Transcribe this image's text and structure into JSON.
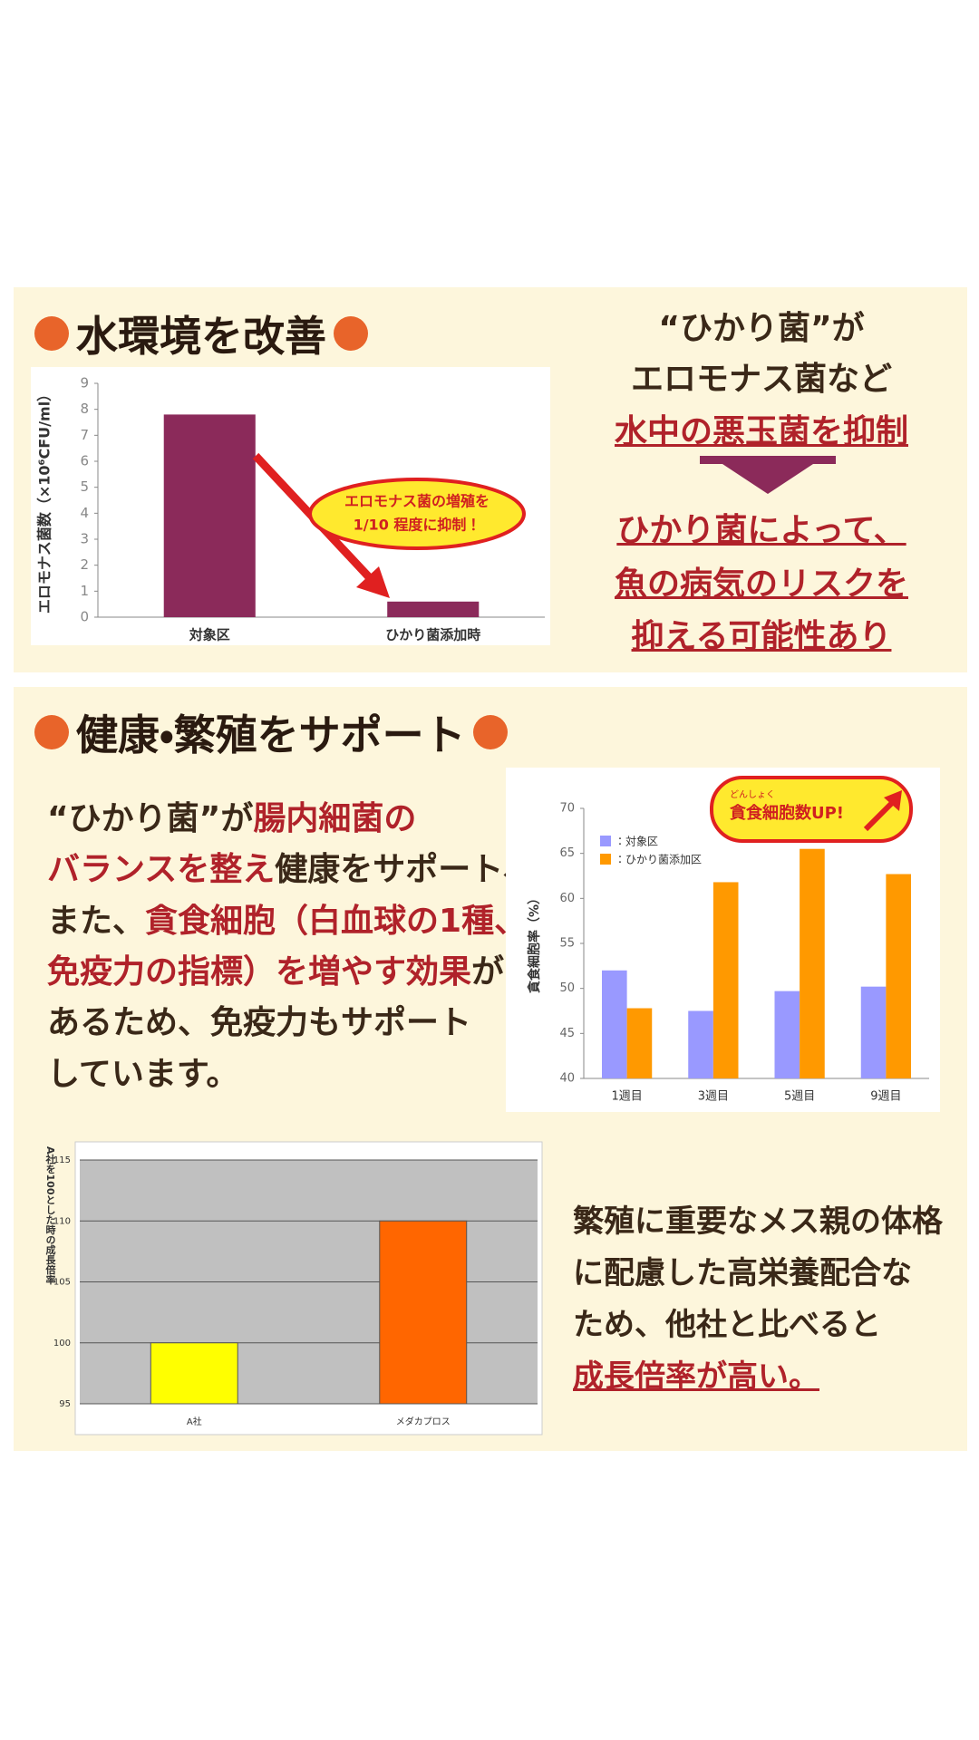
{
  "water": {
    "heading": "水環境を改善",
    "lines": [
      "“ひかり菌”が",
      "エロモナス菌など",
      "水中の悪玉菌を抑制",
      "ひかり菌によって、",
      "魚の病気のリスクを",
      "抑える可能性あり"
    ]
  },
  "health": {
    "heading": "健康・繁殖をサポート",
    "paragraph": [
      [
        "“ひかり菌”が",
        "腸内細菌の"
      ],
      [
        "バランスを整え",
        "健康をサポート、"
      ],
      [
        "また、",
        "貪食細胞（白血球の1種、"
      ],
      [
        "免疫力の指標）を増やす効果",
        "が"
      ],
      [
        "あるため、免疫力もサポート"
      ],
      [
        "しています。"
      ]
    ],
    "growth_text": [
      "繁殖に重要なメス親の体格",
      "に配慮した高栄養配合な",
      "ため、他社と比べると",
      "成長倍率が高い。"
    ]
  },
  "chart_data": [
    {
      "type": "bar",
      "y_label": "エロモナス菌数（×10⁶CFU/ml）",
      "categories": [
        "対象区",
        "ひかり菌添加時"
      ],
      "values": [
        7.8,
        0.6
      ],
      "color": "#8b2a5a",
      "ylim": [
        0,
        9
      ],
      "yticks": [
        0,
        1,
        2,
        3,
        4,
        5,
        6,
        7,
        8,
        9
      ],
      "annotation": [
        "エロモナス菌の増殖を",
        "1/10 程度に抑制！"
      ]
    },
    {
      "type": "bar",
      "y_label": "貪食細胞率（%）",
      "categories": [
        "1週目",
        "3週目",
        "5週目",
        "9週目"
      ],
      "series": [
        {
          "name": "：対象区",
          "color": "#9999ff",
          "values": [
            52,
            47.5,
            49.7,
            50.2
          ]
        },
        {
          "name": "：ひかり菌添加区",
          "color": "#ff9900",
          "values": [
            47.8,
            61.8,
            65.5,
            62.7
          ]
        }
      ],
      "ylim": [
        40,
        70
      ],
      "yticks": [
        40,
        45,
        50,
        55,
        60,
        65,
        70
      ],
      "annotation": "貪食細胞数UP!",
      "annotation_ruby": "どんしょく"
    },
    {
      "type": "bar",
      "y_label": "A社を100とした時の成長倍率",
      "categories": [
        "A社",
        "メダカプロス"
      ],
      "values": [
        100,
        110
      ],
      "colors": [
        "#ffff00",
        "#ff6600"
      ],
      "ylim": [
        95,
        115
      ],
      "yticks": [
        95,
        100,
        105,
        110,
        115
      ],
      "grid": true
    }
  ]
}
